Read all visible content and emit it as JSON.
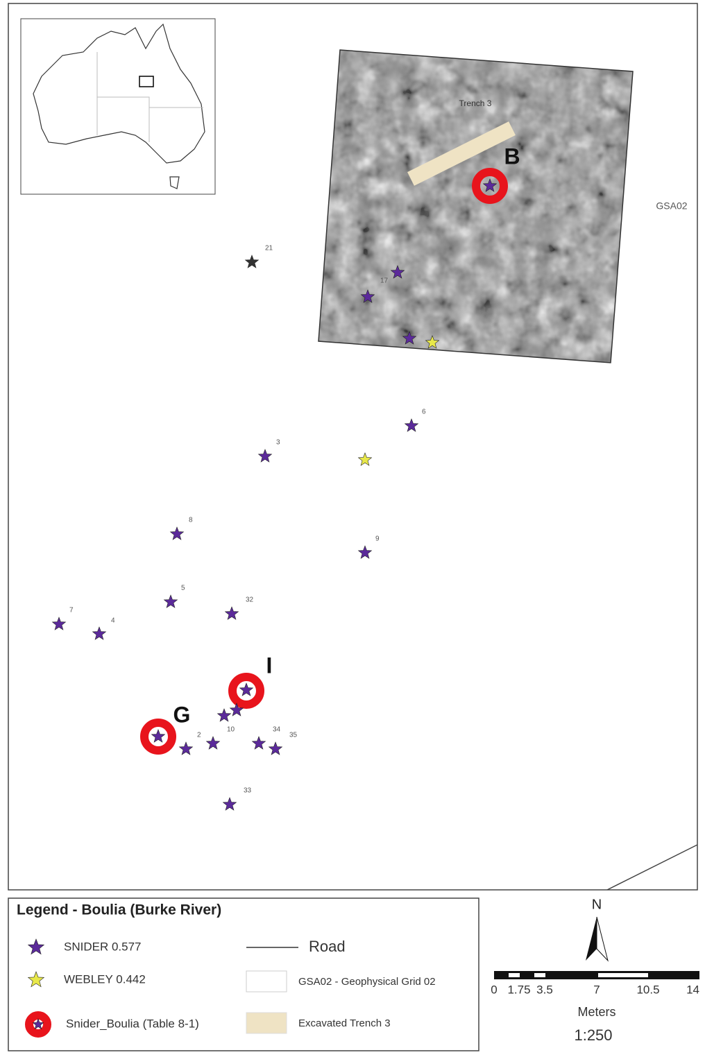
{
  "map": {
    "grid_label": "GSA02",
    "trench_label": "Trench 3",
    "site_letters": [
      "B",
      "I",
      "G"
    ],
    "point_labels": [
      "21",
      "17",
      "6",
      "3",
      "8",
      "9",
      "5",
      "32",
      "7",
      "4",
      "10",
      "2",
      "34",
      "35",
      "33"
    ]
  },
  "legend": {
    "title": "Legend - Boulia (Burke River)",
    "items": [
      "SNIDER 0.577",
      "WEBLEY 0.442",
      "Snider_Boulia (Table 8-1)",
      "Road",
      "GSA02 - Geophysical Grid 02",
      "Excavated Trench 3"
    ]
  },
  "scale": {
    "north": "N",
    "ticks": [
      "0",
      "1.75",
      "3.5",
      "7",
      "10.5",
      "14"
    ],
    "unit": "Meters",
    "ratio": "1:250"
  }
}
